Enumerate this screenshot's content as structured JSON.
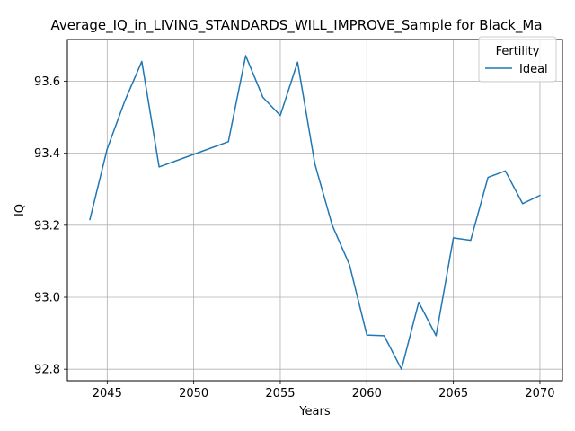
{
  "chart_data": {
    "type": "line",
    "title": "Average_IQ_in_LIVING_STANDARDS_WILL_IMPROVE_Sample for Black_Ma",
    "xlabel": "Years",
    "ylabel": "IQ",
    "xlim": [
      2042.7,
      2071.3
    ],
    "ylim": [
      92.768,
      93.716
    ],
    "xticks": [
      2045,
      2050,
      2055,
      2060,
      2065,
      2070
    ],
    "yticks": [
      92.8,
      93.0,
      93.2,
      93.4,
      93.6
    ],
    "xtick_labels": [
      "2045",
      "2050",
      "2055",
      "2060",
      "2065",
      "2070"
    ],
    "ytick_labels": [
      "92.8",
      "93.0",
      "93.2",
      "93.4",
      "93.6"
    ],
    "grid": true,
    "legend": {
      "title": "Fertility",
      "placement": "top-right"
    },
    "series": [
      {
        "name": "Ideal",
        "color": "#1f77b4",
        "x": [
          2044,
          2045,
          2046,
          2047,
          2048,
          2050,
          2052,
          2053,
          2054,
          2055,
          2056,
          2057,
          2058,
          2059,
          2060,
          2061,
          2062,
          2063,
          2064,
          2065,
          2066,
          2067,
          2068,
          2069,
          2070
        ],
        "y": [
          93.216,
          93.412,
          93.543,
          93.655,
          93.362,
          93.397,
          93.432,
          93.671,
          93.555,
          93.505,
          93.653,
          93.37,
          93.2,
          93.09,
          92.895,
          92.893,
          92.8,
          92.986,
          92.893,
          93.165,
          93.158,
          93.333,
          93.351,
          93.26,
          93.283
        ]
      }
    ]
  }
}
